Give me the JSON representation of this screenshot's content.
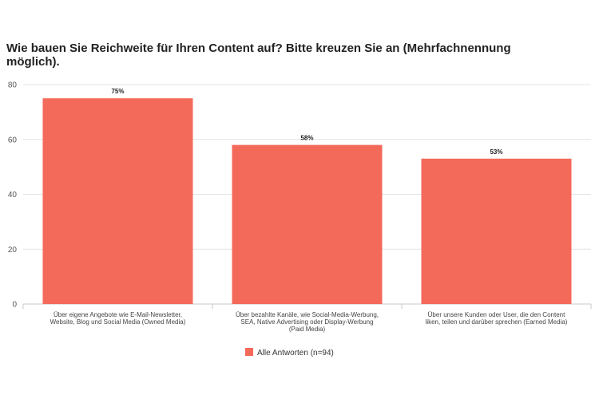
{
  "colors": {
    "bar": "#f46a5a",
    "grid": "#e4e4e4",
    "axis": "#c8c8c8"
  },
  "chart_data": {
    "type": "bar",
    "title": "Wie bauen Sie Reichweite für Ihren Content auf? Bitte kreuzen Sie an (Mehrfachnennung möglich).",
    "categories": [
      [
        "Über eigene Angebote wie E-Mail-Newsletter,",
        "Website, Blog und Social Media (Owned Media)"
      ],
      [
        "Über bezahlte Kanäle, wie Social-Media-Werbung,",
        "SEA, Native Advertising oder Display-Werbung",
        "(Paid Media)"
      ],
      [
        "Über unsere Kunden oder User, die den Content",
        "liken, teilen und darüber sprechen (Earned Media)"
      ]
    ],
    "series": [
      {
        "name": "Alle Antworten (n=94)",
        "values": [
          75,
          58,
          53
        ],
        "labels": [
          "75%",
          "58%",
          "53%"
        ]
      }
    ],
    "ylim": [
      0,
      80
    ],
    "yticks": [
      0,
      20,
      40,
      60,
      80
    ],
    "grid": true,
    "legend": "bottom-center"
  }
}
